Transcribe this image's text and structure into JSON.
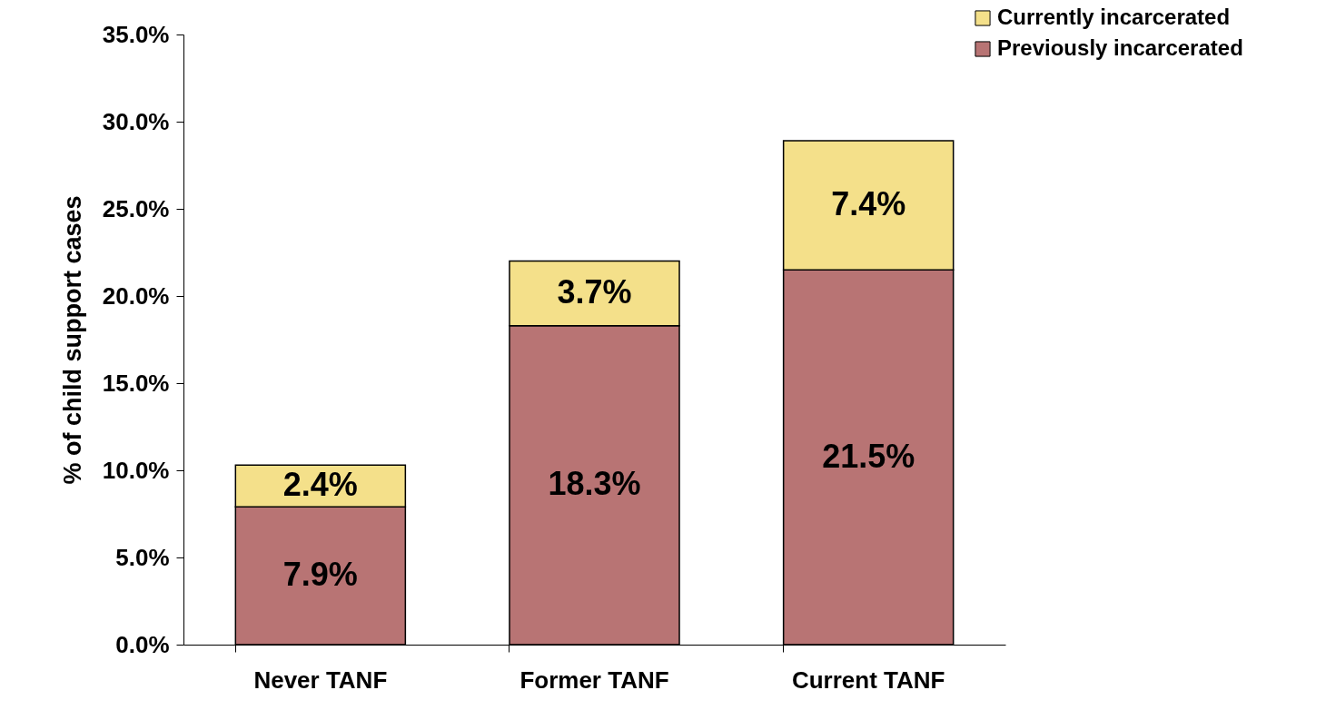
{
  "chart_data": {
    "type": "bar",
    "stacked": true,
    "ylabel": "% of child support cases",
    "categories": [
      "Never TANF",
      "Former TANF",
      "Current TANF"
    ],
    "series": [
      {
        "name": "Previously incarcerated",
        "color": "#b87474",
        "values": [
          7.9,
          18.3,
          21.5
        ],
        "value_labels": [
          "7.9%",
          "18.3%",
          "21.5%"
        ]
      },
      {
        "name": "Currently incarcerated",
        "color": "#f4e08a",
        "values": [
          2.4,
          3.7,
          7.4
        ],
        "value_labels": [
          "2.4%",
          "3.7%",
          "7.4%"
        ]
      }
    ],
    "ylim": [
      0,
      35
    ],
    "yticks": [
      {
        "value": 0,
        "label": "0.0%"
      },
      {
        "value": 5,
        "label": "5.0%"
      },
      {
        "value": 10,
        "label": "10.0%"
      },
      {
        "value": 15,
        "label": "15.0%"
      },
      {
        "value": 20,
        "label": "20.0%"
      },
      {
        "value": 25,
        "label": "25.0%"
      },
      {
        "value": 30,
        "label": "30.0%"
      },
      {
        "value": 35,
        "label": "35.0%"
      }
    ],
    "grid": false,
    "legend": "top right"
  }
}
